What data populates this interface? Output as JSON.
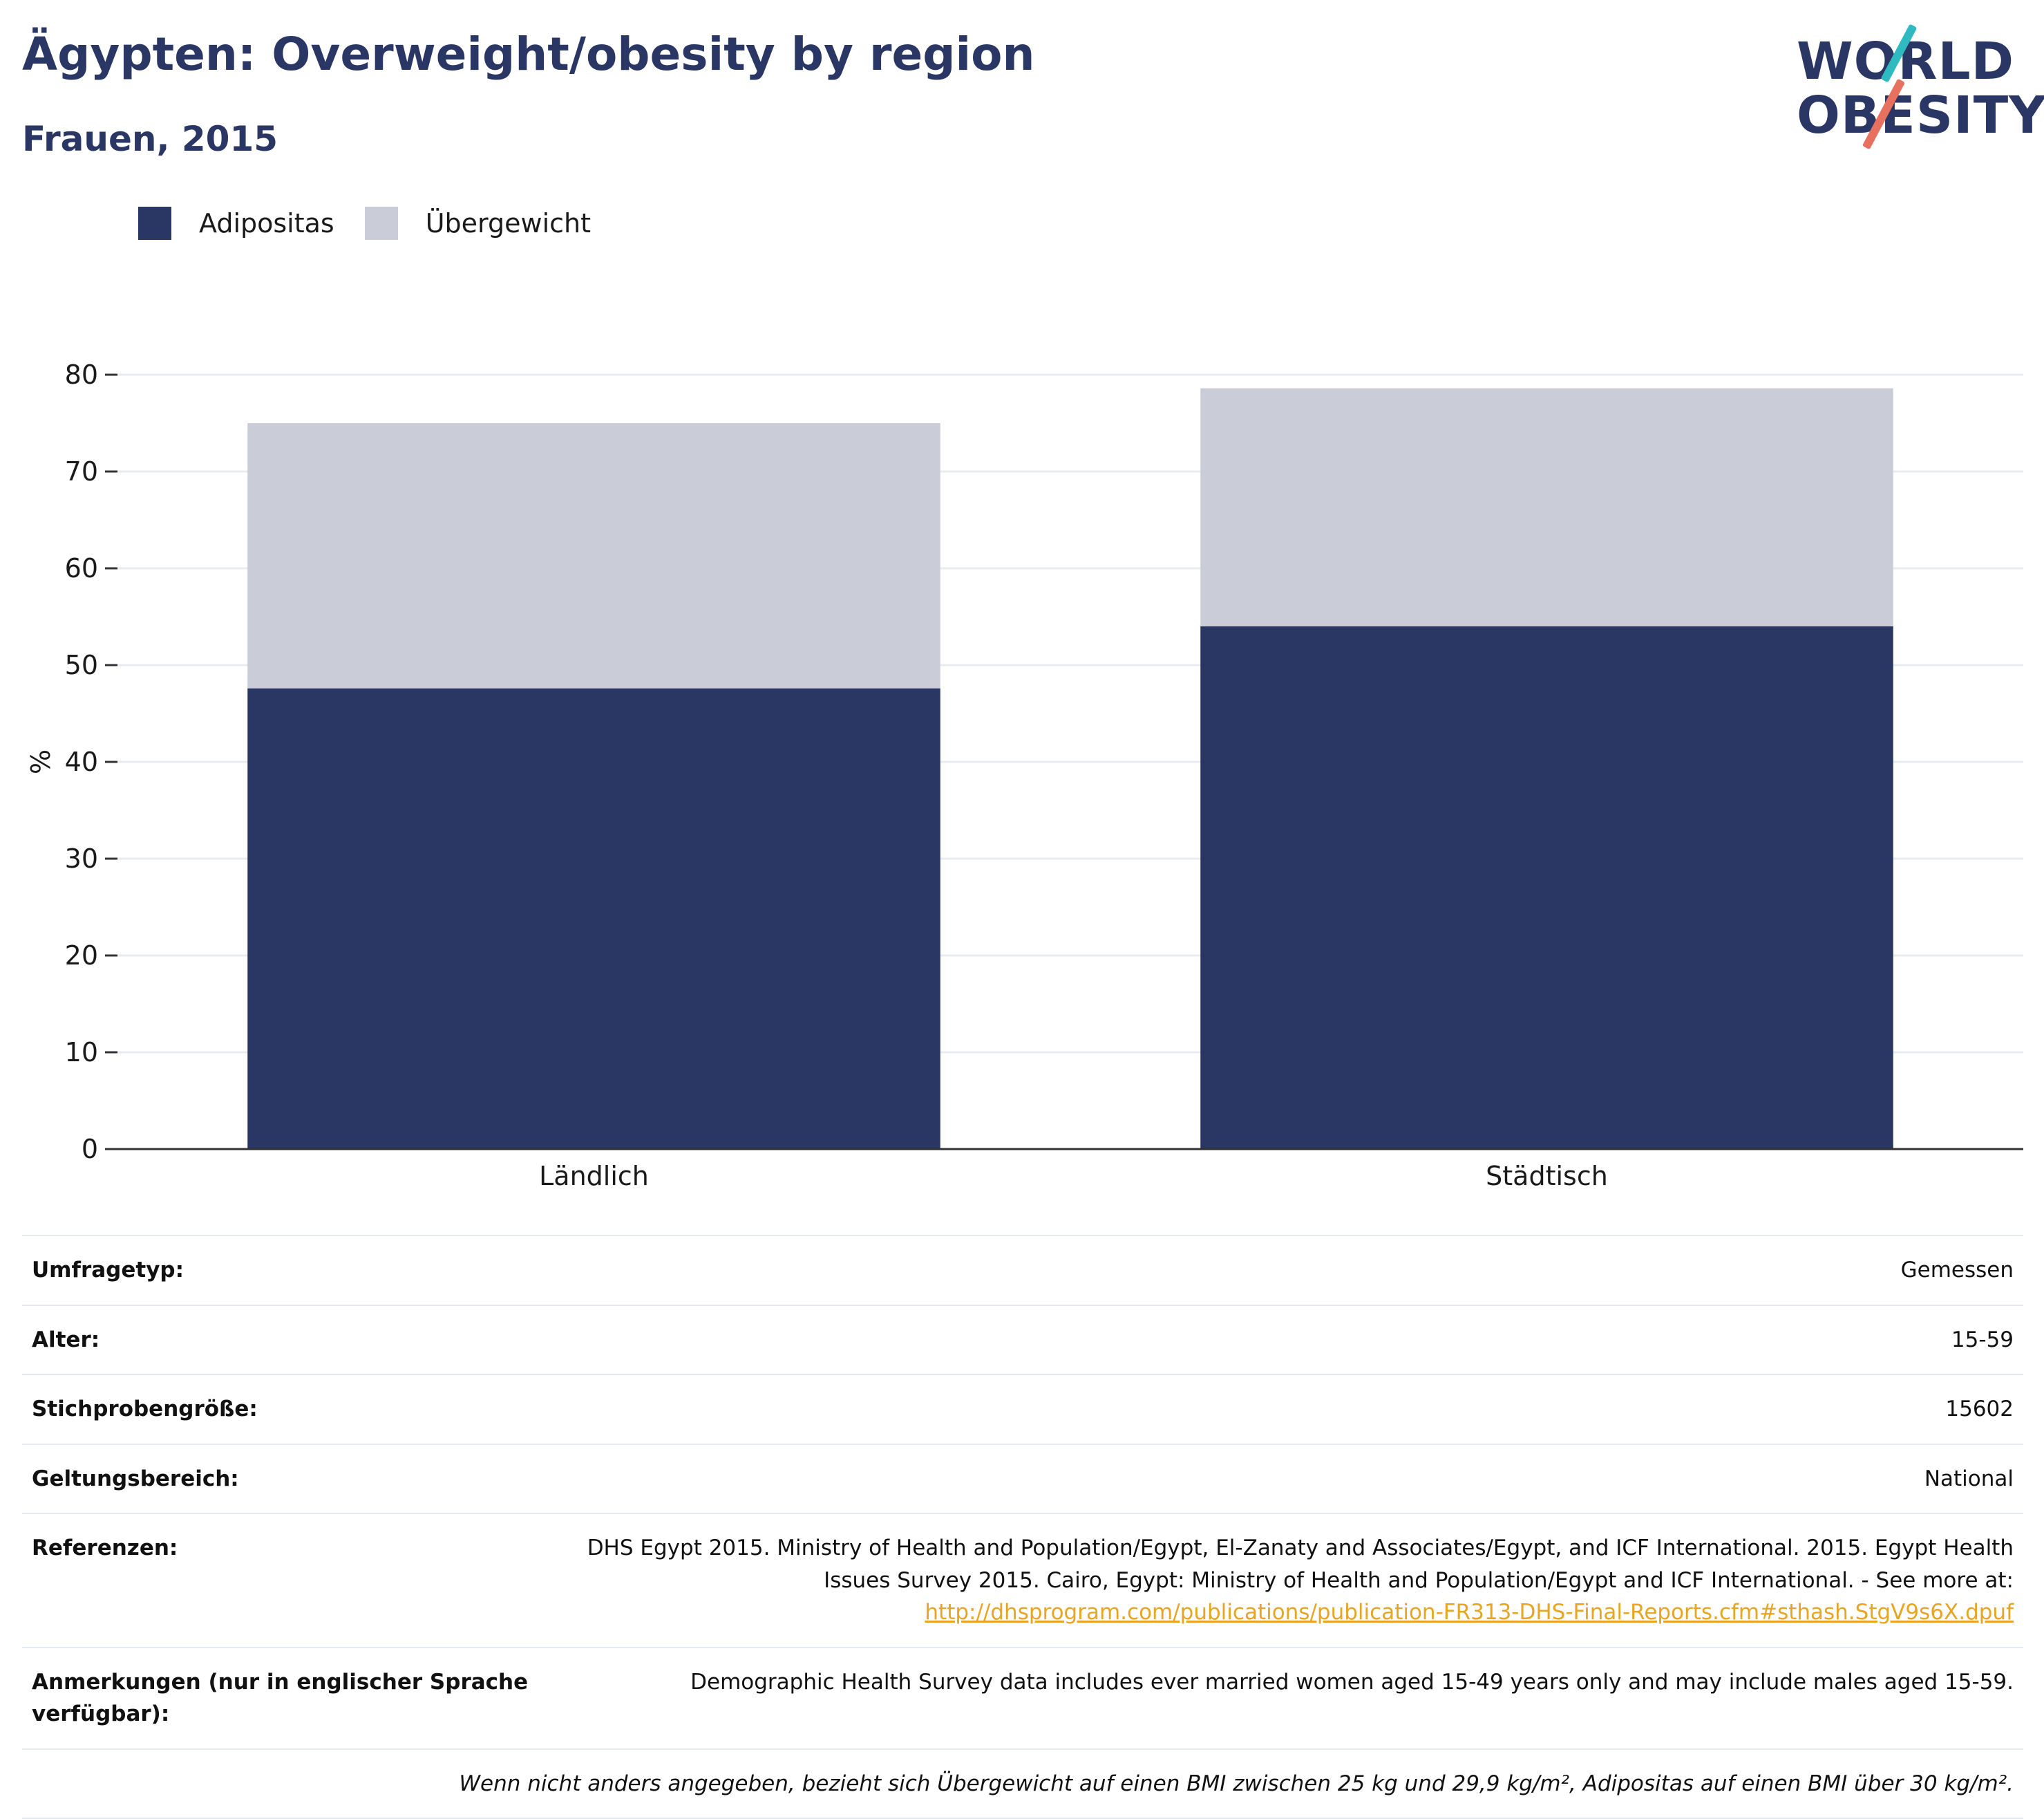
{
  "header": {
    "title": "Ägypten: Overweight/obesity by region",
    "subtitle": "Frauen, 2015"
  },
  "logo": {
    "line1": "WORLD",
    "line2": "OBESITY"
  },
  "colors": {
    "obesity": "#2a3663",
    "overweight": "#cacdd8",
    "grid": "#e9ebf0",
    "axis": "#333333"
  },
  "chart_data": {
    "type": "bar",
    "stacked": true,
    "categories": [
      "Ländlich",
      "Städtisch"
    ],
    "series": [
      {
        "name": "Adipositas",
        "values": [
          47.6,
          54.0
        ]
      },
      {
        "name": "Übergewicht",
        "values": [
          27.4,
          24.6
        ]
      }
    ],
    "ylabel": "%",
    "ylim": [
      0,
      80
    ],
    "yticks": [
      0,
      10,
      20,
      30,
      40,
      50,
      60,
      70,
      80
    ],
    "grid": true,
    "legend_position": "top-left"
  },
  "info": {
    "survey_type": {
      "label": "Umfragetyp:",
      "value": "Gemessen"
    },
    "age": {
      "label": "Alter:",
      "value": "15-59"
    },
    "sample_size": {
      "label": "Stichprobengröße:",
      "value": "15602"
    },
    "scope": {
      "label": "Geltungsbereich:",
      "value": "National"
    },
    "references": {
      "label": "Referenzen:",
      "text": "DHS Egypt 2015. Ministry of Health and Population/Egypt, El-Zanaty and Associates/Egypt, and ICF International. 2015. Egypt Health Issues Survey 2015. Cairo, Egypt: Ministry of Health and Population/Egypt and ICF International. - See more at:",
      "link": "http://dhsprogram.com/publications/publication-FR313-DHS-Final-Reports.cfm#sthash.StgV9s6X.dpuf"
    },
    "notes": {
      "label": "Anmerkungen (nur in englischer Sprache verfügbar):",
      "value": "Demographic Health Survey data includes ever married women aged 15-49 years only and may include males aged 15-59."
    },
    "footnote": "Wenn nicht anders angegeben, bezieht sich Übergewicht auf einen BMI zwischen 25 kg und 29,9 kg/m², Adipositas auf einen BMI über 30 kg/m²."
  }
}
